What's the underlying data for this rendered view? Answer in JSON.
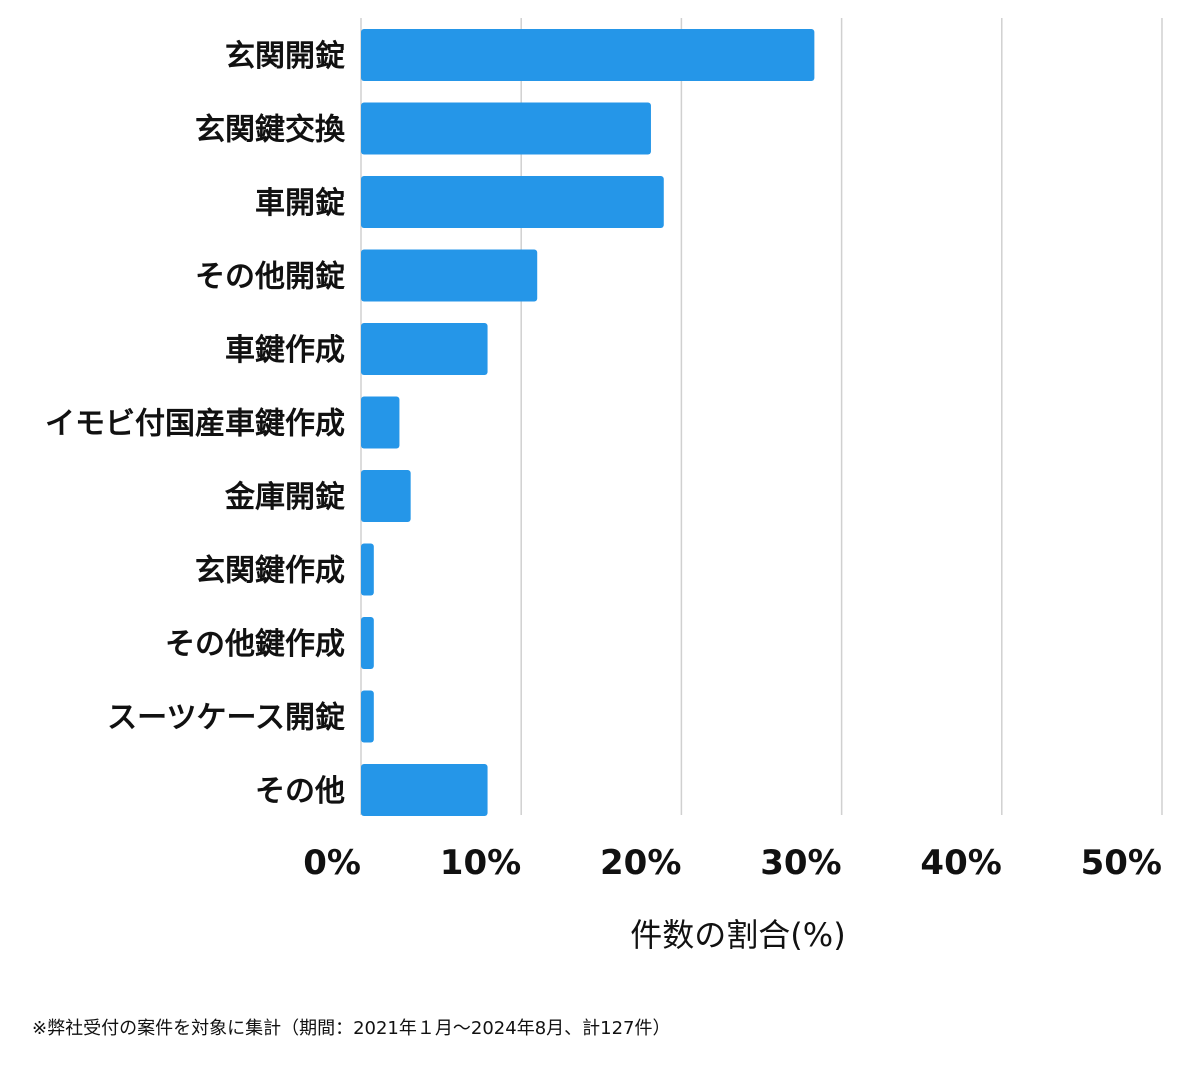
{
  "chart_data": {
    "type": "bar",
    "orientation": "horizontal",
    "categories": [
      "玄関開錠",
      "玄関鍵交換",
      "車開錠",
      "その他開錠",
      "車鍵作成",
      "イモビ付国産車鍵作成",
      "金庫開錠",
      "玄関鍵作成",
      "その他鍵作成",
      "スーツケース開錠",
      "その他"
    ],
    "values": [
      28.3,
      18.1,
      18.9,
      11.0,
      7.9,
      2.4,
      3.1,
      0.8,
      0.8,
      0.8,
      7.9
    ],
    "xlim": [
      0,
      50
    ],
    "xticks": [
      0,
      10,
      20,
      30,
      40,
      50
    ],
    "xtick_labels": [
      "0%",
      "10%",
      "20%",
      "30%",
      "40%",
      "50%"
    ],
    "xlabel": "件数の割合(%)",
    "grid": "vertical",
    "bar_color": "#2596e8",
    "grid_color": "#d0d0d0"
  },
  "footnote": "※弊社受付の案件を対象に集計（期間：2021年１月〜2024年8月、計127件）"
}
